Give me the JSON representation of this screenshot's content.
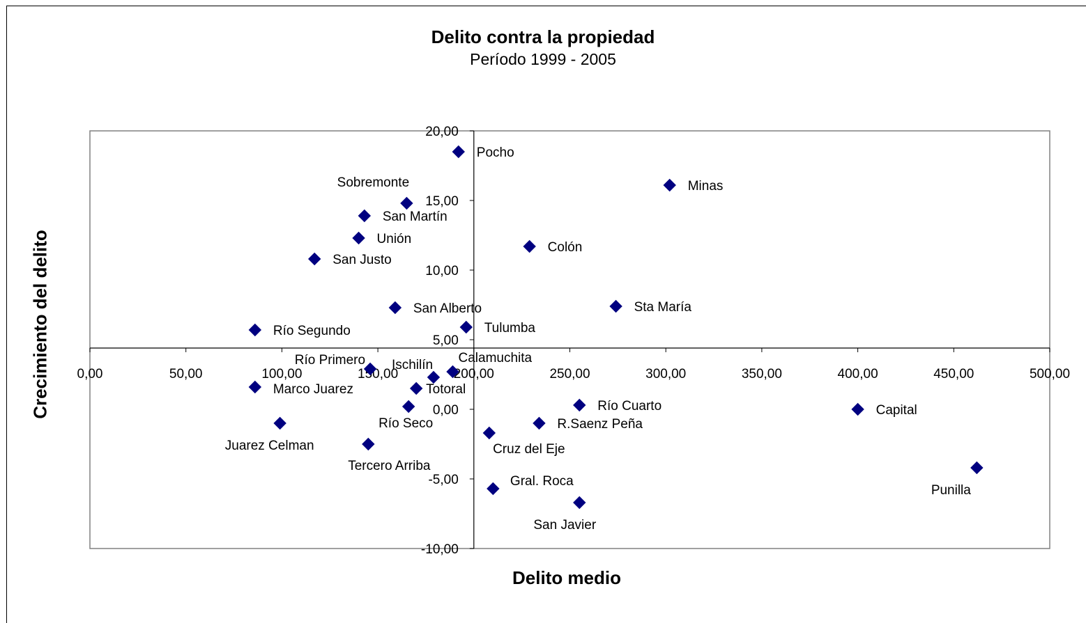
{
  "chart_data": {
    "type": "scatter",
    "title": "Delito contra la propiedad",
    "subtitle": "Período 1999 - 2005",
    "xlabel": "Delito medio",
    "ylabel": "Crecimiento del delito",
    "xlim": [
      0,
      500
    ],
    "ylim": [
      -10,
      20
    ],
    "x_ticks": [
      "0,00",
      "50,00",
      "100,00",
      "150,00",
      "200,00",
      "250,00",
      "300,00",
      "350,00",
      "400,00",
      "450,00",
      "500,00"
    ],
    "y_ticks": [
      "20,00",
      "15,00",
      "10,00",
      "5,00",
      "0,00",
      "-5,00",
      "-10,00"
    ],
    "marker_color": "#000080",
    "grid": false,
    "points": [
      {
        "label": "Pocho",
        "x": 192,
        "y": 18.5
      },
      {
        "label": "Minas",
        "x": 302,
        "y": 16.1
      },
      {
        "label": "Sobremonte",
        "x": 165,
        "y": 14.8
      },
      {
        "label": "San Martín",
        "x": 143,
        "y": 13.9
      },
      {
        "label": "Unión",
        "x": 140,
        "y": 12.3
      },
      {
        "label": "Colón",
        "x": 229,
        "y": 11.7
      },
      {
        "label": "San Justo",
        "x": 117,
        "y": 10.8
      },
      {
        "label": "San Alberto",
        "x": 159,
        "y": 7.3
      },
      {
        "label": "Sta María",
        "x": 274,
        "y": 7.4
      },
      {
        "label": "Tulumba",
        "x": 196,
        "y": 5.9
      },
      {
        "label": "Río Segundo",
        "x": 86,
        "y": 5.7
      },
      {
        "label": "Río Primero",
        "x": 146,
        "y": 2.9
      },
      {
        "label": "Ischilín",
        "x": 179,
        "y": 2.3
      },
      {
        "label": "Calamuchita",
        "x": 189,
        "y": 2.7
      },
      {
        "label": "Marco Juarez",
        "x": 86,
        "y": 1.6
      },
      {
        "label": "Totoral",
        "x": 170,
        "y": 1.5
      },
      {
        "label": "Río Seco",
        "x": 166,
        "y": 0.2
      },
      {
        "label": "Río Cuarto",
        "x": 255,
        "y": 0.3
      },
      {
        "label": "Capital",
        "x": 400,
        "y": 0.0
      },
      {
        "label": "Juarez Celman",
        "x": 99,
        "y": -1.0
      },
      {
        "label": "R.Saenz Peña",
        "x": 234,
        "y": -1.0
      },
      {
        "label": "Cruz del Eje",
        "x": 208,
        "y": -1.7
      },
      {
        "label": "Tercero Arriba",
        "x": 145,
        "y": -2.5
      },
      {
        "label": "Punilla",
        "x": 462,
        "y": -4.2
      },
      {
        "label": "Gral. Roca",
        "x": 210,
        "y": -5.7
      },
      {
        "label": "San Javier",
        "x": 255,
        "y": -6.7
      }
    ]
  }
}
